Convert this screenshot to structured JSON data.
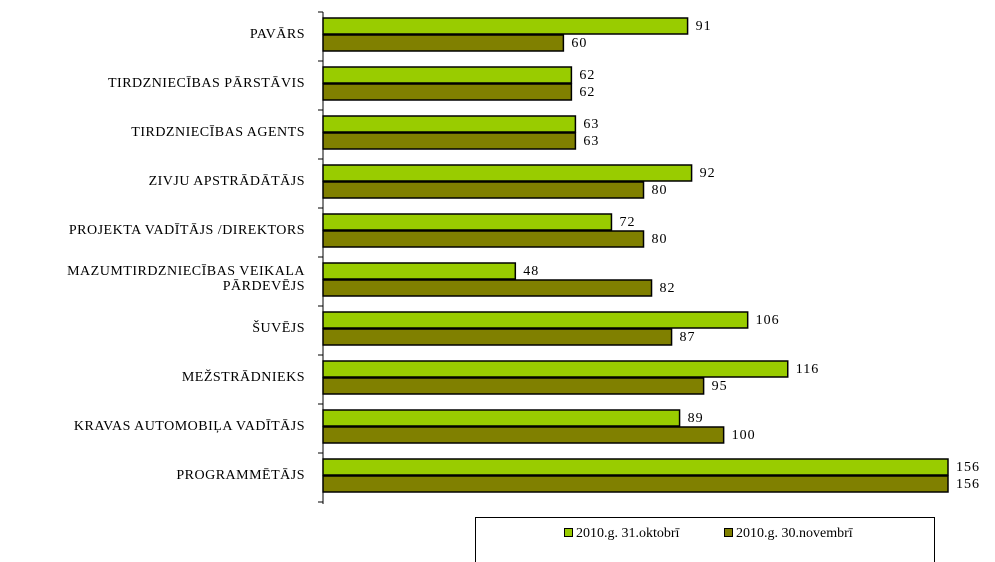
{
  "chart_data": {
    "type": "bar",
    "orientation": "horizontal",
    "categories": [
      "PAVĀRS",
      "TIRDZNIECĪBAS PĀRSTĀVIS",
      "TIRDZNIECĪBAS AGENTS",
      "ZIVJU APSTRĀDĀTĀJS",
      "PROJEKTA VADĪTĀJS /DIREKTORS",
      "MAZUMTIRDZNIECĪBAS VEIKALA PĀRDEVĒJS",
      "ŠUVĒJS",
      "MEŽSTRĀDNIEKS",
      "KRAVAS AUTOMOBIĻA VADĪTĀJS",
      "PROGRAMMĒTĀJS"
    ],
    "series": [
      {
        "name": "2010.g. 31.oktobrī",
        "color": "#99cc00",
        "values": [
          91,
          62,
          63,
          92,
          72,
          48,
          106,
          116,
          89,
          156
        ]
      },
      {
        "name": "2010.g. 30.novembrī",
        "color": "#808000",
        "values": [
          60,
          62,
          63,
          80,
          80,
          82,
          87,
          95,
          100,
          156
        ]
      }
    ],
    "xlim": [
      0,
      156
    ],
    "legend": "bottom"
  }
}
